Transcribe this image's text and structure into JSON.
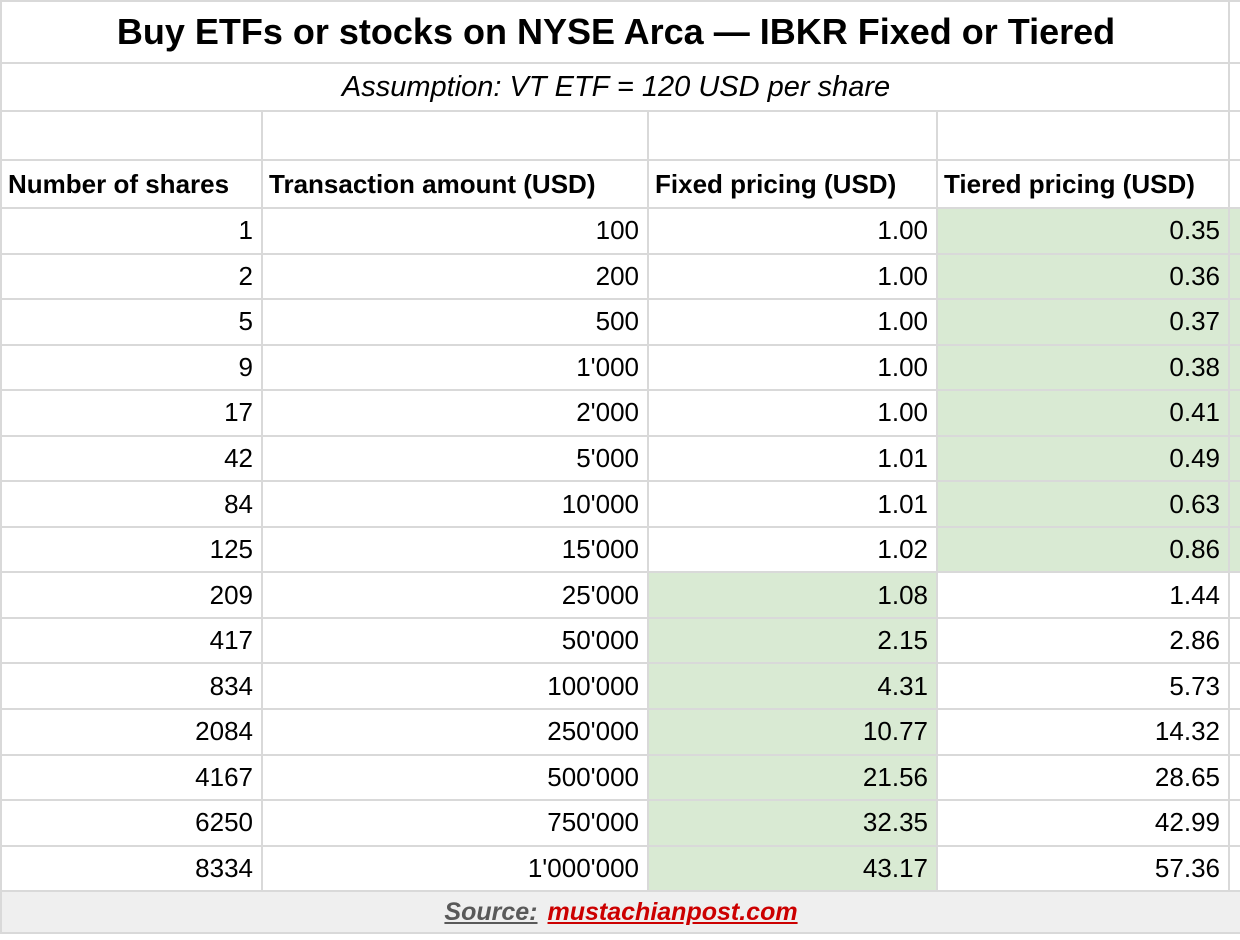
{
  "chart_data": {
    "type": "table",
    "title": "Buy ETFs or stocks on NYSE Arca — IBKR Fixed or Tiered",
    "subtitle": "Assumption: VT ETF = 120 USD per share",
    "columns": [
      "Number of shares",
      "Transaction amount (USD)",
      "Fixed pricing (USD)",
      "Tiered pricing (USD)"
    ],
    "rows": [
      {
        "shares": "1",
        "amount": "100",
        "fixed": "1.00",
        "tiered": "0.35",
        "highlight": "tiered"
      },
      {
        "shares": "2",
        "amount": "200",
        "fixed": "1.00",
        "tiered": "0.36",
        "highlight": "tiered"
      },
      {
        "shares": "5",
        "amount": "500",
        "fixed": "1.00",
        "tiered": "0.37",
        "highlight": "tiered"
      },
      {
        "shares": "9",
        "amount": "1'000",
        "fixed": "1.00",
        "tiered": "0.38",
        "highlight": "tiered"
      },
      {
        "shares": "17",
        "amount": "2'000",
        "fixed": "1.00",
        "tiered": "0.41",
        "highlight": "tiered"
      },
      {
        "shares": "42",
        "amount": "5'000",
        "fixed": "1.01",
        "tiered": "0.49",
        "highlight": "tiered"
      },
      {
        "shares": "84",
        "amount": "10'000",
        "fixed": "1.01",
        "tiered": "0.63",
        "highlight": "tiered"
      },
      {
        "shares": "125",
        "amount": "15'000",
        "fixed": "1.02",
        "tiered": "0.86",
        "highlight": "tiered"
      },
      {
        "shares": "209",
        "amount": "25'000",
        "fixed": "1.08",
        "tiered": "1.44",
        "highlight": "fixed"
      },
      {
        "shares": "417",
        "amount": "50'000",
        "fixed": "2.15",
        "tiered": "2.86",
        "highlight": "fixed"
      },
      {
        "shares": "834",
        "amount": "100'000",
        "fixed": "4.31",
        "tiered": "5.73",
        "highlight": "fixed"
      },
      {
        "shares": "2084",
        "amount": "250'000",
        "fixed": "10.77",
        "tiered": "14.32",
        "highlight": "fixed"
      },
      {
        "shares": "4167",
        "amount": "500'000",
        "fixed": "21.56",
        "tiered": "28.65",
        "highlight": "fixed"
      },
      {
        "shares": "6250",
        "amount": "750'000",
        "fixed": "32.35",
        "tiered": "42.99",
        "highlight": "fixed"
      },
      {
        "shares": "8334",
        "amount": "1'000'000",
        "fixed": "43.17",
        "tiered": "57.36",
        "highlight": "fixed"
      }
    ],
    "layout_hints": {
      "highlight_meaning": "green cell marks cheaper pricing plan per row",
      "value_alignment": "right",
      "header_alignment": "left"
    }
  },
  "footer": {
    "source_label": "Source:",
    "source_link": "mustachianpost.com"
  },
  "colors": {
    "highlight_green": "#d9ead3",
    "footer_bg": "#efefef",
    "link_red": "#cc0000",
    "source_gray": "#595959",
    "grid_line": "#d9d9d9"
  }
}
